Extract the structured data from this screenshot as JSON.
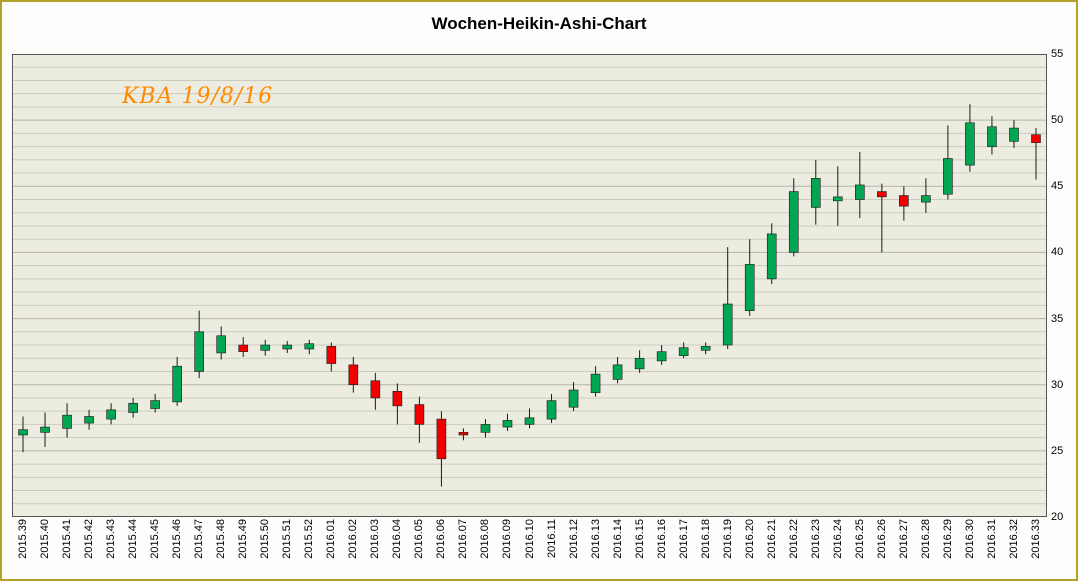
{
  "chart_data": {
    "type": "candlestick",
    "title": "Wochen-Heikin-Ashi-Chart",
    "annotation": "KBA 19/8/16",
    "xlabel": "",
    "ylabel": "",
    "ylim": [
      20,
      55
    ],
    "y_ticks": [
      20,
      25,
      30,
      35,
      40,
      45,
      50,
      55
    ],
    "grid": "horizontal",
    "legend": "none",
    "categories": [
      "2015.39",
      "2015.40",
      "2015.41",
      "2015.42",
      "2015.43",
      "2015.44",
      "2015.45",
      "2015.46",
      "2015.47",
      "2015.48",
      "2015.49",
      "2015.50",
      "2015.51",
      "2015.52",
      "2016.01",
      "2016.02",
      "2016.03",
      "2016.04",
      "2016.05",
      "2016.06",
      "2016.07",
      "2016.08",
      "2016.09",
      "2016.10",
      "2016.11",
      "2016.12",
      "2016.13",
      "2016.14",
      "2016.15",
      "2016.16",
      "2016.17",
      "2016.18",
      "2016.19",
      "2016.20",
      "2016.21",
      "2016.22",
      "2016.23",
      "2016.24",
      "2016.25",
      "2016.26",
      "2016.27",
      "2016.28",
      "2016.29",
      "2016.30",
      "2016.31",
      "2016.32",
      "2016.33"
    ],
    "candles_format": [
      "open",
      "high",
      "low",
      "close"
    ],
    "candles": [
      [
        26.2,
        27.6,
        24.9,
        26.6
      ],
      [
        26.4,
        27.9,
        25.3,
        26.8
      ],
      [
        26.7,
        28.6,
        26.0,
        27.7
      ],
      [
        27.1,
        28.1,
        26.6,
        27.6
      ],
      [
        27.4,
        28.6,
        27.0,
        28.1
      ],
      [
        27.9,
        29.0,
        27.5,
        28.6
      ],
      [
        28.2,
        29.3,
        27.9,
        28.8
      ],
      [
        28.7,
        32.1,
        28.4,
        31.4
      ],
      [
        31.0,
        35.6,
        30.5,
        34.0
      ],
      [
        32.4,
        34.4,
        31.9,
        33.7
      ],
      [
        33.0,
        33.6,
        32.1,
        32.5
      ],
      [
        32.6,
        33.4,
        32.2,
        33.0
      ],
      [
        32.7,
        33.3,
        32.4,
        33.0
      ],
      [
        32.7,
        33.4,
        32.3,
        33.1
      ],
      [
        32.9,
        33.2,
        31.0,
        31.6
      ],
      [
        31.5,
        32.1,
        29.4,
        30.0
      ],
      [
        30.3,
        30.9,
        28.1,
        29.0
      ],
      [
        29.5,
        30.1,
        27.0,
        28.4
      ],
      [
        28.5,
        29.1,
        25.6,
        27.0
      ],
      [
        27.4,
        28.0,
        22.3,
        24.4
      ],
      [
        26.4,
        26.7,
        25.8,
        26.2
      ],
      [
        26.4,
        27.4,
        26.0,
        27.0
      ],
      [
        26.8,
        27.8,
        26.5,
        27.3
      ],
      [
        27.0,
        28.2,
        26.7,
        27.5
      ],
      [
        27.4,
        29.3,
        27.1,
        28.8
      ],
      [
        28.3,
        30.2,
        28.0,
        29.6
      ],
      [
        29.4,
        31.4,
        29.1,
        30.8
      ],
      [
        30.4,
        32.1,
        30.1,
        31.5
      ],
      [
        31.2,
        32.6,
        30.9,
        32.0
      ],
      [
        31.8,
        33.0,
        31.5,
        32.5
      ],
      [
        32.2,
        33.2,
        32.0,
        32.8
      ],
      [
        32.6,
        33.2,
        32.3,
        32.9
      ],
      [
        33.0,
        40.4,
        32.7,
        36.1
      ],
      [
        35.6,
        41.0,
        35.2,
        39.1
      ],
      [
        38.0,
        42.2,
        37.6,
        41.4
      ],
      [
        40.0,
        45.6,
        39.7,
        44.6
      ],
      [
        43.4,
        47.0,
        42.1,
        45.6
      ],
      [
        43.9,
        46.5,
        42.0,
        44.2
      ],
      [
        44.0,
        47.6,
        42.6,
        45.1
      ],
      [
        44.6,
        45.2,
        40.0,
        44.2
      ],
      [
        44.3,
        45.0,
        42.4,
        43.5
      ],
      [
        43.8,
        45.6,
        43.0,
        44.3
      ],
      [
        44.4,
        49.6,
        44.0,
        47.1
      ],
      [
        46.6,
        51.2,
        46.1,
        49.8
      ],
      [
        48.0,
        50.3,
        47.4,
        49.5
      ],
      [
        48.4,
        50.0,
        47.9,
        49.4
      ],
      [
        48.9,
        49.4,
        45.5,
        48.3
      ]
    ],
    "colors": {
      "up": "#00a651",
      "down": "#f20000",
      "background": "#edece1",
      "grid": "#cbcbbf",
      "grid_major": "#b4b4a7",
      "wick": "#1a1a1a",
      "annotation": "#ff8a00",
      "frame": "#555555"
    }
  }
}
